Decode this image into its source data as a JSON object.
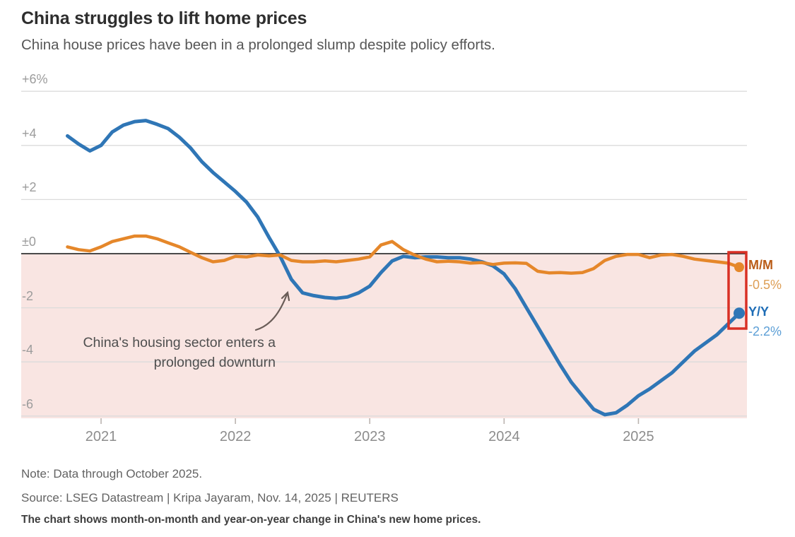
{
  "header": {
    "title": "China struggles to lift home prices",
    "subtitle": "China house prices have been in a prolonged slump despite policy efforts."
  },
  "chart_data": {
    "type": "line",
    "title": "China struggles to lift home prices",
    "subtitle": "China house prices have been in a prolonged slump despite policy efforts.",
    "x_start_month": "2020-10",
    "x_end_month": "2025-10",
    "x_interval": "monthly",
    "ylim": [
      -6.6,
      6.9
    ],
    "grid": "horizontal",
    "negative_region_shaded": true,
    "y_axis": {
      "ticks": [
        {
          "label": "+6%",
          "value": 6
        },
        {
          "label": "+4",
          "value": 4
        },
        {
          "label": "+2",
          "value": 2
        },
        {
          "label": "±0",
          "value": 0
        },
        {
          "label": "-2",
          "value": -2
        },
        {
          "label": "-4",
          "value": -4
        },
        {
          "label": "-6",
          "value": -6
        }
      ]
    },
    "x_axis": {
      "ticks": [
        {
          "label": "2021",
          "month_index": 3
        },
        {
          "label": "2022",
          "month_index": 15
        },
        {
          "label": "2023",
          "month_index": 27
        },
        {
          "label": "2024",
          "month_index": 39
        },
        {
          "label": "2025",
          "month_index": 51
        }
      ]
    },
    "series": [
      {
        "name": "Y/Y",
        "value_label": "-2.2%",
        "latest_value": -2.2,
        "values": [
          4.35,
          4.05,
          3.8,
          4.0,
          4.5,
          4.75,
          4.88,
          4.92,
          4.78,
          4.62,
          4.3,
          3.9,
          3.4,
          3.0,
          2.65,
          2.3,
          1.9,
          1.35,
          0.6,
          -0.1,
          -0.95,
          -1.45,
          -1.55,
          -1.62,
          -1.65,
          -1.6,
          -1.45,
          -1.2,
          -0.7,
          -0.27,
          -0.1,
          -0.15,
          -0.12,
          -0.12,
          -0.15,
          -0.15,
          -0.2,
          -0.3,
          -0.45,
          -0.75,
          -1.3,
          -2.0,
          -2.7,
          -3.4,
          -4.1,
          -4.75,
          -5.25,
          -5.75,
          -5.95,
          -5.88,
          -5.6,
          -5.25,
          -5.0,
          -4.7,
          -4.4,
          -4.0,
          -3.6,
          -3.3,
          -3.0,
          -2.6,
          -2.2
        ]
      },
      {
        "name": "M/M",
        "value_label": "-0.5%",
        "latest_value": -0.5,
        "values": [
          0.25,
          0.15,
          0.1,
          0.25,
          0.45,
          0.55,
          0.65,
          0.65,
          0.55,
          0.4,
          0.25,
          0.05,
          -0.15,
          -0.3,
          -0.25,
          -0.1,
          -0.12,
          -0.05,
          -0.08,
          -0.05,
          -0.25,
          -0.3,
          -0.3,
          -0.27,
          -0.3,
          -0.25,
          -0.2,
          -0.12,
          0.32,
          0.45,
          0.15,
          -0.05,
          -0.2,
          -0.3,
          -0.28,
          -0.3,
          -0.35,
          -0.33,
          -0.4,
          -0.35,
          -0.34,
          -0.36,
          -0.65,
          -0.71,
          -0.7,
          -0.72,
          -0.7,
          -0.55,
          -0.25,
          -0.1,
          -0.03,
          -0.03,
          -0.15,
          -0.05,
          -0.03,
          -0.1,
          -0.2,
          -0.25,
          -0.3,
          -0.35,
          -0.5
        ]
      }
    ],
    "annotation": {
      "lines": [
        "China's housing sector enters a",
        "prolonged downturn"
      ]
    },
    "highlight_box_note": "red box around latest M/M and Y/Y data points"
  },
  "footer": {
    "note": "Note: Data through October 2025.",
    "source": "Source: LSEG Datastream | Kripa Jayaram, Nov. 14, 2025 | REUTERS",
    "description": "The chart shows month-on-month and year-on-year change in China's new home prices."
  },
  "colors": {
    "yy_line": "#2F76B6",
    "mm_line": "#E5872A",
    "yy_label": "#1E6DB6",
    "yy_value": "#5C9FD6",
    "mm_label": "#BA5C17",
    "mm_value": "#DD9E55",
    "negative_band": "#F9E5E2",
    "gridline": "#DBDBDB",
    "zero_line": "#4A4A4A",
    "tick": "#BBB4B0",
    "highlight_box": "#D93025",
    "arrow": "#6A5D58"
  }
}
